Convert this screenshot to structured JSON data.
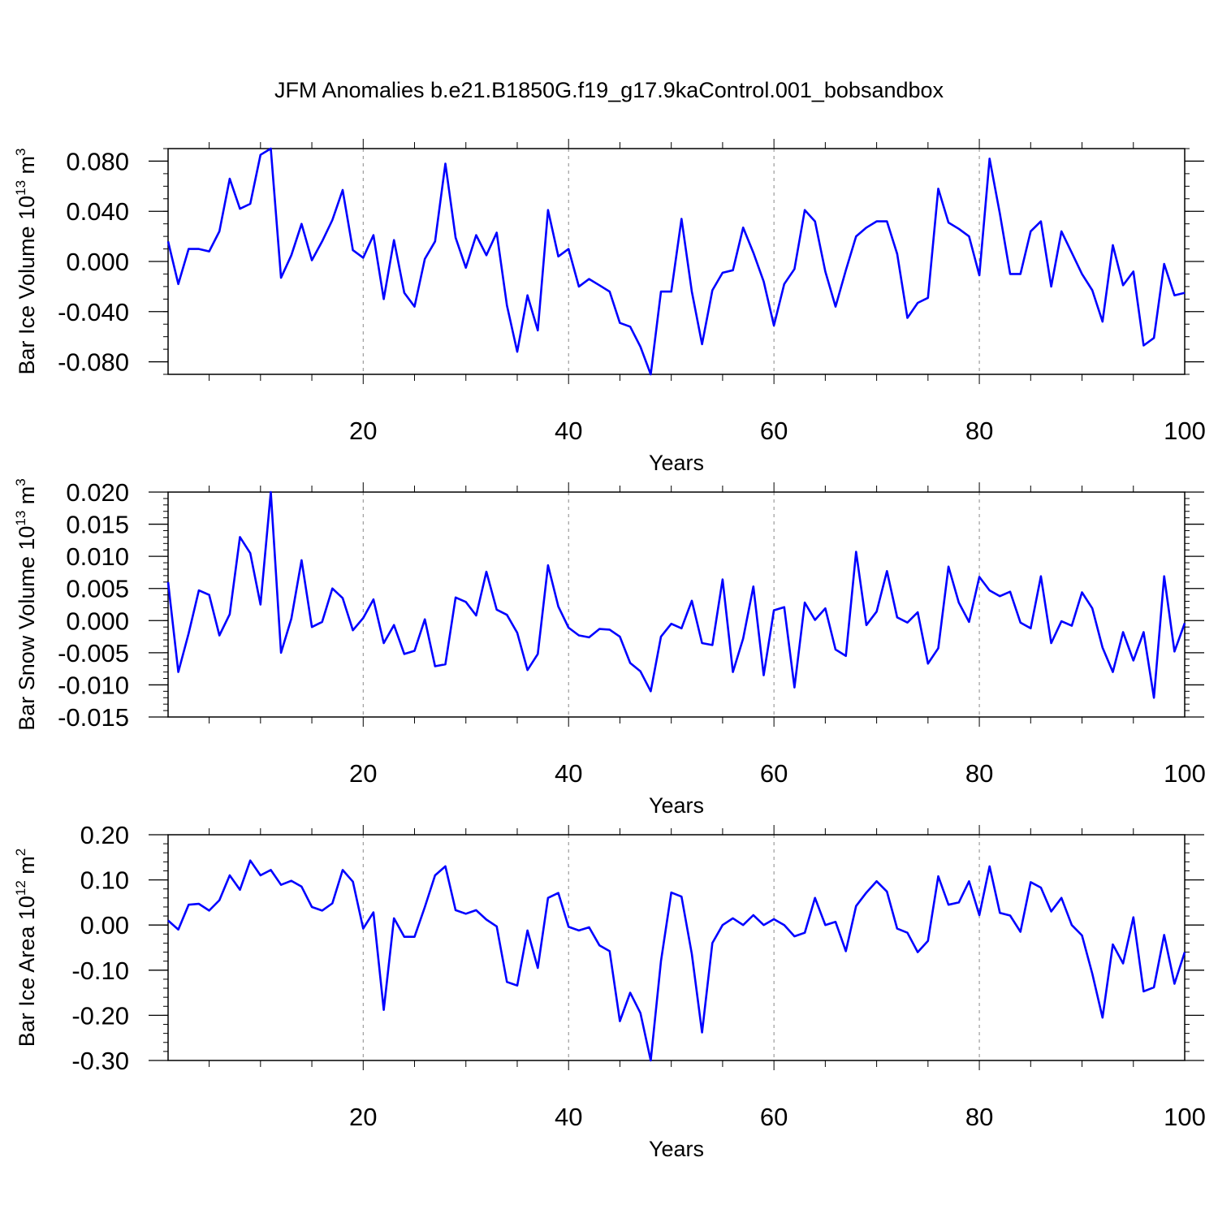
{
  "title": "JFM Anomalies b.e21.B1850G.f19_g17.9kaControl.001_bobsandbox",
  "colors": {
    "line": "#0000ff",
    "axis": "#000000",
    "grid": "#888888"
  },
  "chart_data": [
    {
      "type": "line",
      "name": "ice-volume",
      "ylabel_main": "Bar Ice Volume 10",
      "ylabel_exp": "13",
      "ylabel_unit": " m",
      "ylabel_unit_exp": "3",
      "xlabel": "Years",
      "xlim": [
        1,
        100
      ],
      "ylim": [
        -0.09,
        0.09
      ],
      "xticks": [
        "20",
        "40",
        "60",
        "80",
        "100"
      ],
      "xtick_values": [
        20,
        40,
        60,
        80,
        100
      ],
      "yticks": [
        "0.080",
        "0.040",
        "0.000",
        "-0.040",
        "-0.080"
      ],
      "ytick_values": [
        0.08,
        0.04,
        0.0,
        -0.04,
        -0.08
      ],
      "ystep_minor": 0.01,
      "grid": "vertical dashed at major x ticks",
      "values": [
        0.016,
        -0.018,
        0.01,
        0.01,
        0.008,
        0.024,
        0.066,
        0.042,
        0.046,
        0.085,
        0.09,
        -0.013,
        0.005,
        0.03,
        0.001,
        0.016,
        0.033,
        0.057,
        0.009,
        0.003,
        0.021,
        -0.03,
        0.017,
        -0.025,
        -0.036,
        0.002,
        0.016,
        0.078,
        0.019,
        -0.005,
        0.021,
        0.005,
        0.023,
        -0.035,
        -0.072,
        -0.027,
        -0.055,
        0.041,
        0.004,
        0.01,
        -0.02,
        -0.014,
        -0.019,
        -0.024,
        -0.049,
        -0.052,
        -0.068,
        -0.09,
        -0.024,
        -0.024,
        0.034,
        -0.024,
        -0.066,
        -0.023,
        -0.009,
        -0.007,
        0.027,
        0.007,
        -0.016,
        -0.051,
        -0.018,
        -0.006,
        0.041,
        0.032,
        -0.008,
        -0.036,
        -0.007,
        0.02,
        0.027,
        0.032,
        0.032,
        0.006,
        -0.045,
        -0.033,
        -0.029,
        0.058,
        0.031,
        0.026,
        0.02,
        -0.011,
        0.082,
        0.038,
        -0.01,
        -0.01,
        0.024,
        0.032,
        -0.02,
        0.024,
        0.007,
        -0.01,
        -0.023,
        -0.048,
        0.013,
        -0.019,
        -0.008,
        -0.067,
        -0.061,
        -0.002,
        -0.027,
        -0.025
      ]
    },
    {
      "type": "line",
      "name": "snow-volume",
      "ylabel_main": "Bar Snow Volume 10",
      "ylabel_exp": "13",
      "ylabel_unit": " m",
      "ylabel_unit_exp": "3",
      "xlabel": "Years",
      "xlim": [
        1,
        100
      ],
      "ylim": [
        -0.015,
        0.02
      ],
      "xticks": [
        "20",
        "40",
        "60",
        "80",
        "100"
      ],
      "xtick_values": [
        20,
        40,
        60,
        80,
        100
      ],
      "yticks": [
        "0.020",
        "0.015",
        "0.010",
        "0.005",
        "0.000",
        "-0.005",
        "-0.010",
        "-0.015"
      ],
      "ytick_values": [
        0.02,
        0.015,
        0.01,
        0.005,
        0.0,
        -0.005,
        -0.01,
        -0.015
      ],
      "ystep_minor": 0.001,
      "grid": "vertical dashed at major x ticks",
      "values": [
        0.006,
        -0.008,
        -0.002,
        0.0047,
        0.004,
        -0.0023,
        0.001,
        0.013,
        0.0105,
        0.0025,
        0.02,
        -0.005,
        0.0003,
        0.0094,
        -0.001,
        -0.0002,
        0.005,
        0.0035,
        -0.0015,
        0.0004,
        0.0033,
        -0.0035,
        -0.0007,
        -0.0052,
        -0.0047,
        0.0002,
        -0.0071,
        -0.0068,
        0.0036,
        0.0029,
        0.0008,
        0.0076,
        0.0017,
        0.0009,
        -0.0019,
        -0.0077,
        -0.0052,
        0.0086,
        0.0022,
        -0.0011,
        -0.0023,
        -0.0026,
        -0.0013,
        -0.0014,
        -0.0025,
        -0.0066,
        -0.0079,
        -0.011,
        -0.0025,
        -0.0005,
        -0.0012,
        0.0031,
        -0.0035,
        -0.0038,
        0.0064,
        -0.008,
        -0.0028,
        0.0053,
        -0.0085,
        0.0016,
        0.0021,
        -0.0104,
        0.0028,
        0.0001,
        0.0019,
        -0.0045,
        -0.0055,
        0.0107,
        -0.0007,
        0.0014,
        0.0077,
        0.0005,
        -0.0003,
        0.0013,
        -0.0067,
        -0.0043,
        0.0084,
        0.0028,
        -0.0002,
        0.0068,
        0.0047,
        0.0038,
        0.0045,
        -0.0003,
        -0.0012,
        0.0069,
        -0.0035,
        -0.0001,
        -0.0008,
        0.0044,
        0.0019,
        -0.0042,
        -0.008,
        -0.0018,
        -0.0062,
        -0.0018,
        -0.012,
        0.0069,
        -0.0048,
        -0.0004
      ]
    },
    {
      "type": "line",
      "name": "ice-area",
      "ylabel_main": "Bar Ice Area 10",
      "ylabel_exp": "12",
      "ylabel_unit": " m",
      "ylabel_unit_exp": "2",
      "xlabel": "Years",
      "xlim": [
        1,
        100
      ],
      "ylim": [
        -0.3,
        0.2
      ],
      "xticks": [
        "20",
        "40",
        "60",
        "80",
        "100"
      ],
      "xtick_values": [
        20,
        40,
        60,
        80,
        100
      ],
      "yticks": [
        "0.20",
        "0.10",
        "0.00",
        "-0.10",
        "-0.20",
        "-0.30"
      ],
      "ytick_values": [
        0.2,
        0.1,
        0.0,
        -0.1,
        -0.2,
        -0.3
      ],
      "ystep_minor": 0.02,
      "grid": "vertical dashed at major x ticks",
      "values": [
        0.01,
        -0.01,
        0.045,
        0.047,
        0.032,
        0.055,
        0.11,
        0.078,
        0.143,
        0.11,
        0.122,
        0.089,
        0.098,
        0.085,
        0.04,
        0.032,
        0.048,
        0.122,
        0.096,
        -0.008,
        0.028,
        -0.188,
        0.015,
        -0.026,
        -0.026,
        0.04,
        0.11,
        0.13,
        0.033,
        0.025,
        0.033,
        0.012,
        -0.003,
        -0.126,
        -0.134,
        -0.012,
        -0.095,
        0.06,
        0.071,
        -0.004,
        -0.012,
        -0.005,
        -0.045,
        -0.058,
        -0.213,
        -0.15,
        -0.195,
        -0.3,
        -0.08,
        0.072,
        0.063,
        -0.064,
        -0.238,
        -0.04,
        0.0,
        0.015,
        0.0,
        0.022,
        0.0,
        0.013,
        0.0,
        -0.025,
        -0.017,
        0.06,
        0.0,
        0.007,
        -0.058,
        0.042,
        0.072,
        0.097,
        0.074,
        -0.008,
        -0.017,
        -0.06,
        -0.035,
        0.108,
        0.045,
        0.05,
        0.097,
        0.022,
        0.13,
        0.027,
        0.021,
        -0.015,
        0.095,
        0.083,
        0.03,
        0.06,
        0.0,
        -0.023,
        -0.108,
        -0.205,
        -0.043,
        -0.085,
        0.017,
        -0.147,
        -0.138,
        -0.022,
        -0.13,
        -0.06
      ]
    }
  ]
}
